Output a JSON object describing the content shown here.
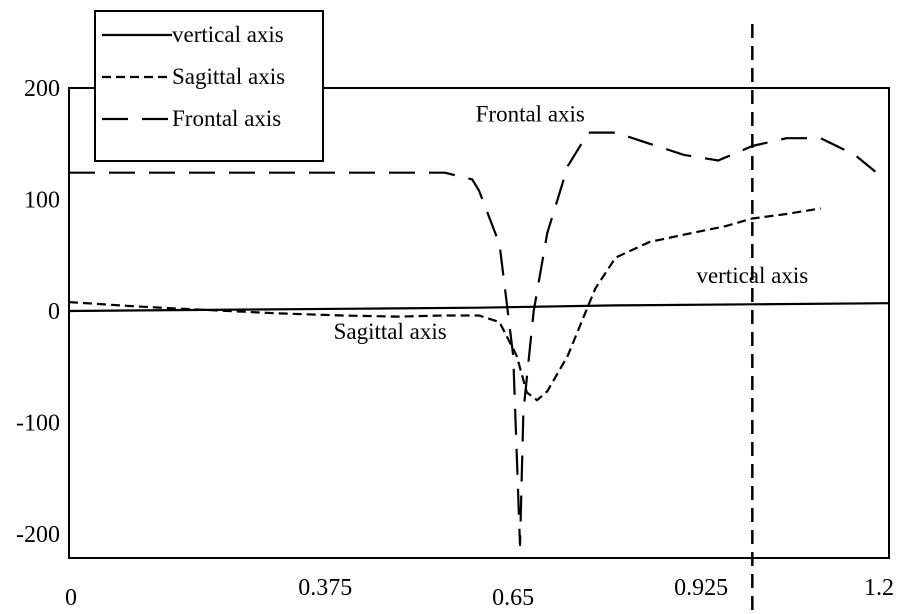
{
  "chart_data": {
    "type": "line",
    "title": "",
    "xlabel": "",
    "ylabel": "",
    "xlim": [
      0,
      1.2
    ],
    "ylim": [
      -220,
      200
    ],
    "x_ticks": [
      {
        "value": 0,
        "label": "0"
      },
      {
        "value": 0.375,
        "label": "0.375"
      },
      {
        "value": 0.65,
        "label": "0.65"
      },
      {
        "value": 0.925,
        "label": "0.925"
      },
      {
        "value": 1.2,
        "label": "1.2"
      }
    ],
    "y_ticks": [
      {
        "value": 200,
        "label": "200"
      },
      {
        "value": 100,
        "label": "100"
      },
      {
        "value": 0,
        "label": "0"
      },
      {
        "value": -100,
        "label": "-100"
      },
      {
        "value": -200,
        "label": "-200"
      }
    ],
    "grid": false,
    "legend_position": "top-left",
    "series": [
      {
        "name": "vertical axis",
        "style": "solid",
        "color": "#000000",
        "points": [
          [
            0,
            0
          ],
          [
            0.2,
            1
          ],
          [
            0.4,
            2
          ],
          [
            0.6,
            3
          ],
          [
            0.8,
            5
          ],
          [
            1.0,
            6
          ],
          [
            1.2,
            7
          ]
        ]
      },
      {
        "name": "Sagittal axis",
        "style": "short-dash",
        "color": "#000000",
        "points": [
          [
            0,
            8
          ],
          [
            0.1,
            4
          ],
          [
            0.2,
            1
          ],
          [
            0.3,
            -2
          ],
          [
            0.4,
            -4
          ],
          [
            0.48,
            -5
          ],
          [
            0.55,
            -4
          ],
          [
            0.6,
            -4
          ],
          [
            0.63,
            -10
          ],
          [
            0.655,
            -40
          ],
          [
            0.67,
            -73
          ],
          [
            0.685,
            -80
          ],
          [
            0.7,
            -72
          ],
          [
            0.73,
            -40
          ],
          [
            0.75,
            -10
          ],
          [
            0.77,
            20
          ],
          [
            0.8,
            48
          ],
          [
            0.85,
            62
          ],
          [
            0.92,
            71
          ],
          [
            0.96,
            76
          ],
          [
            1.0,
            83
          ],
          [
            1.05,
            87
          ],
          [
            1.1,
            92
          ]
        ]
      },
      {
        "name": "Frontal axis",
        "style": "long-dash",
        "color": "#000000",
        "points": [
          [
            0,
            124
          ],
          [
            0.2,
            124
          ],
          [
            0.37,
            124
          ],
          [
            0.55,
            124
          ],
          [
            0.59,
            118
          ],
          [
            0.6,
            108
          ],
          [
            0.63,
            60
          ],
          [
            0.65,
            -40
          ],
          [
            0.66,
            -210
          ],
          [
            0.665,
            -90
          ],
          [
            0.68,
            0
          ],
          [
            0.7,
            70
          ],
          [
            0.73,
            130
          ],
          [
            0.76,
            160
          ],
          [
            0.8,
            160
          ],
          [
            0.85,
            150
          ],
          [
            0.9,
            140
          ],
          [
            0.95,
            135
          ],
          [
            1.0,
            148
          ],
          [
            1.05,
            155
          ],
          [
            1.1,
            155
          ],
          [
            1.15,
            140
          ],
          [
            1.18,
            125
          ]
        ]
      }
    ],
    "reference_lines": [
      {
        "orientation": "vertical",
        "x": 1.0,
        "style": "dashed"
      }
    ],
    "annotations": [
      {
        "text": "Frontal axis",
        "x": 0.675,
        "y": 170
      },
      {
        "text": "vertical axis",
        "x": 1.0,
        "y": 25
      },
      {
        "text": "Sagittal axis",
        "x": 0.47,
        "y": -25
      }
    ]
  }
}
